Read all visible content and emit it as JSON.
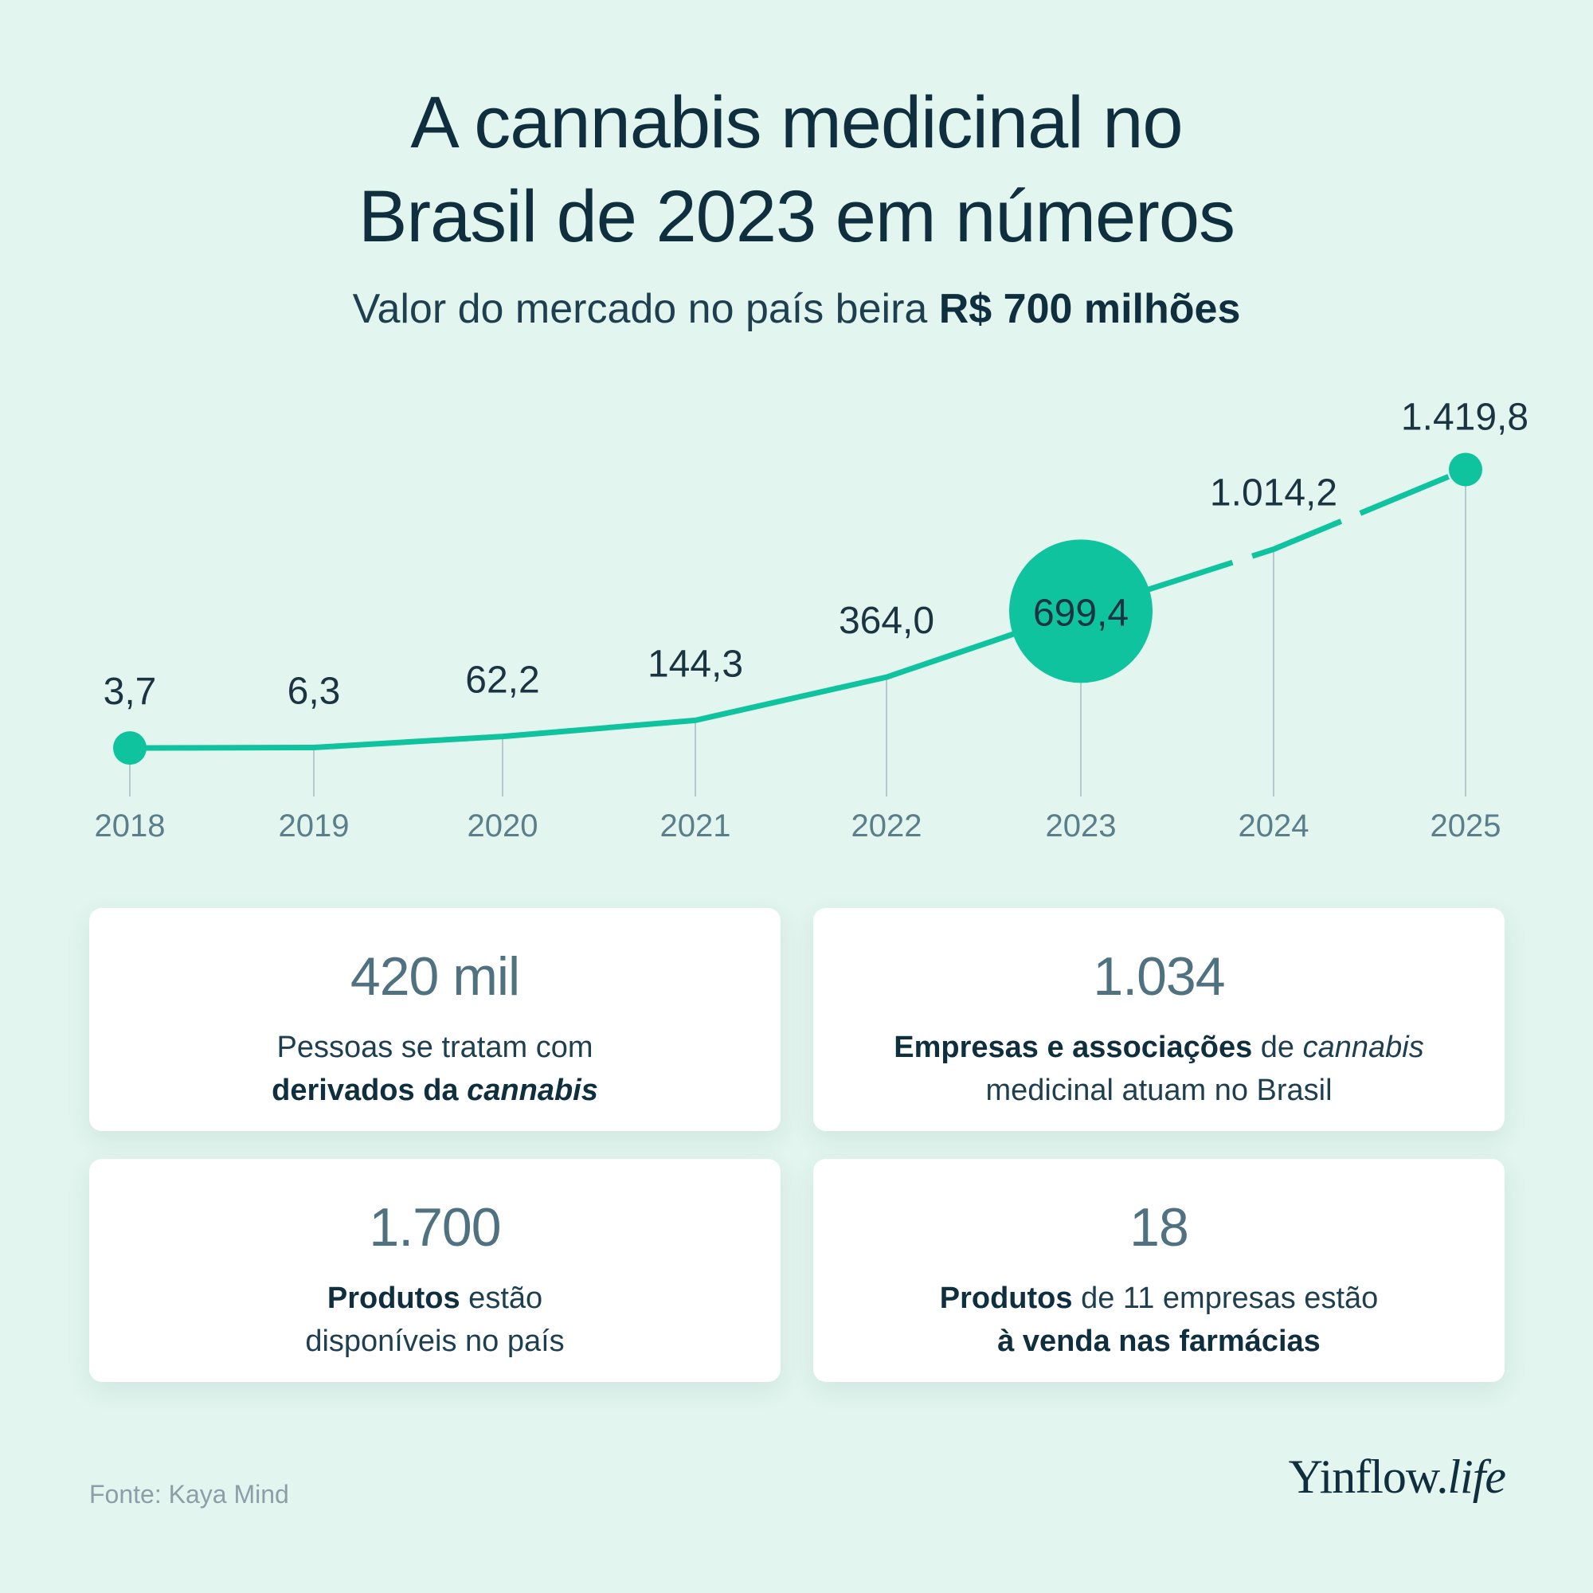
{
  "title_line1": "A cannabis medicinal no",
  "title_line2": "Brasil de 2023 em números",
  "subtitle_prefix": "Valor do mercado no país beira ",
  "subtitle_bold": "R$ 700 milhões",
  "chart_data": {
    "type": "line",
    "categories": [
      "2018",
      "2019",
      "2020",
      "2021",
      "2022",
      "2023",
      "2024",
      "2025"
    ],
    "values": [
      3.7,
      6.3,
      62.2,
      144.3,
      364.0,
      699.4,
      1014.2,
      1419.8
    ],
    "data_labels": [
      "3,7",
      "6,3",
      "62,2",
      "144,3",
      "364,0",
      "699,4",
      "1.014,2",
      "1.419,8"
    ],
    "highlight_category": "2023",
    "projected_from": "2023",
    "ylim": [
      0,
      1450
    ],
    "grid": false,
    "line_color": "#0fc39f",
    "axis_label_color": "#5a7e8a"
  },
  "cards": [
    {
      "number": "420 mil",
      "line1_normal": "Pessoas se tratam com",
      "line2_bold": "derivados da ",
      "line2_bold_italic": "cannabis"
    },
    {
      "number": "1.034",
      "line1_bold": "Empresas e associações",
      "line1_normal": " de ",
      "line1_italic": "cannabis",
      "line2_normal": "medicinal atuam no Brasil"
    },
    {
      "number": "1.700",
      "line1_bold": "Produtos",
      "line1_normal": " estão",
      "line2_normal": "disponíveis no país"
    },
    {
      "number": "18",
      "line1_bold": "Produtos",
      "line1_normal": " de 11 empresas estão",
      "line2_bold": "à venda nas farmácias"
    }
  ],
  "source": "Fonte: Kaya Mind",
  "logo": {
    "main": "Yinflow.",
    "italic": "life"
  }
}
